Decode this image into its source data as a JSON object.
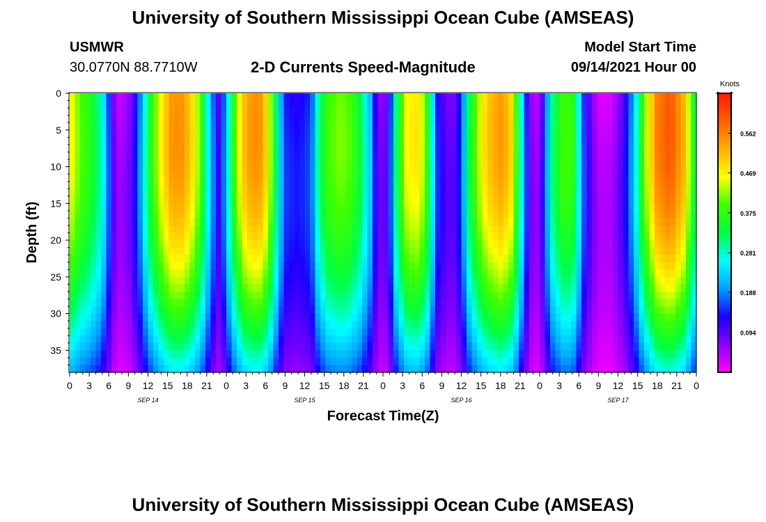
{
  "header": {
    "title": "University of Southern Mississippi Ocean Cube (AMSEAS)",
    "footer_title": "University of Southern Mississippi Ocean Cube (AMSEAS)",
    "station": "USMWR",
    "coords": "30.0770N  88.7710W",
    "model_start_label": "Model Start Time",
    "model_start_value": "09/14/2021 Hour 00"
  },
  "chart_data": {
    "type": "heatmap",
    "title": "2-D Currents Speed-Magnitude",
    "xlabel": "Forecast Time(Z)",
    "ylabel": "Depth (ft)",
    "colorbar_label": "Knots",
    "x_range_hours": [
      0,
      96
    ],
    "y_range_ft": [
      0,
      38
    ],
    "x_ticks": [
      "0",
      "3",
      "6",
      "9",
      "12",
      "15",
      "18",
      "21",
      "0",
      "3",
      "6",
      "9",
      "12",
      "15",
      "18",
      "21",
      "0",
      "3",
      "6",
      "9",
      "12",
      "15",
      "18",
      "21",
      "0",
      "3",
      "6",
      "9",
      "12",
      "15",
      "18",
      "21",
      "0"
    ],
    "y_ticks": [
      "0",
      "5",
      "10",
      "15",
      "20",
      "25",
      "30",
      "35"
    ],
    "y_tick_values": [
      0,
      5,
      10,
      15,
      20,
      25,
      30,
      35
    ],
    "day_labels": [
      {
        "label": "SEP 14",
        "hour": 12
      },
      {
        "label": "SEP 15",
        "hour": 36
      },
      {
        "label": "SEP 16",
        "hour": 60
      },
      {
        "label": "SEP 17",
        "hour": 84
      }
    ],
    "colorbar_ticks": [
      "0.562",
      "0.469",
      "0.375",
      "0.281",
      "0.188",
      "0.094"
    ],
    "colorbar_tick_values": [
      0.562,
      0.469,
      0.375,
      0.281,
      0.188,
      0.094
    ],
    "value_range": [
      0.0,
      0.656
    ],
    "colors": {
      "scale": [
        "#ff00ff",
        "#8a00ff",
        "#1a00ff",
        "#00a0ff",
        "#00ffff",
        "#00ff40",
        "#40ff00",
        "#ffff00",
        "#ffb000",
        "#ff6000",
        "#ff1a00"
      ]
    },
    "surface_speed_by_hour": [
      [
        0,
        0.47
      ],
      [
        1.5,
        0.4
      ],
      [
        3,
        0.36
      ],
      [
        4.5,
        0.3
      ],
      [
        5.5,
        0.22
      ],
      [
        6.5,
        0.09
      ],
      [
        7.5,
        0.03
      ],
      [
        9,
        0.05
      ],
      [
        10.5,
        0.15
      ],
      [
        11.5,
        0.26
      ],
      [
        12.5,
        0.36
      ],
      [
        14,
        0.46
      ],
      [
        15.5,
        0.54
      ],
      [
        17,
        0.55
      ],
      [
        18.5,
        0.5
      ],
      [
        20,
        0.4
      ],
      [
        21,
        0.28
      ],
      [
        22,
        0.17
      ],
      [
        23,
        0.08
      ],
      [
        24,
        0.22
      ],
      [
        25,
        0.35
      ],
      [
        26.5,
        0.5
      ],
      [
        28,
        0.55
      ],
      [
        29.5,
        0.54
      ],
      [
        31,
        0.4
      ],
      [
        32,
        0.25
      ],
      [
        33,
        0.14
      ],
      [
        35,
        0.12
      ],
      [
        37,
        0.15
      ],
      [
        38,
        0.28
      ],
      [
        39.5,
        0.38
      ],
      [
        41.5,
        0.41
      ],
      [
        43,
        0.39
      ],
      [
        44.5,
        0.33
      ],
      [
        46,
        0.22
      ],
      [
        47,
        0.1
      ],
      [
        48,
        0.04
      ],
      [
        49,
        0.12
      ],
      [
        50,
        0.3
      ],
      [
        51.5,
        0.45
      ],
      [
        53,
        0.48
      ],
      [
        54.5,
        0.42
      ],
      [
        55.5,
        0.26
      ],
      [
        56.5,
        0.12
      ],
      [
        58.5,
        0.06
      ],
      [
        60,
        0.14
      ],
      [
        61,
        0.3
      ],
      [
        62.5,
        0.42
      ],
      [
        64,
        0.5
      ],
      [
        66,
        0.54
      ],
      [
        67.5,
        0.5
      ],
      [
        68.5,
        0.38
      ],
      [
        69.5,
        0.22
      ],
      [
        70.5,
        0.06
      ],
      [
        72,
        0.03
      ],
      [
        73,
        0.18
      ],
      [
        74,
        0.3
      ],
      [
        75.5,
        0.38
      ],
      [
        77,
        0.38
      ],
      [
        78,
        0.26
      ],
      [
        79,
        0.12
      ],
      [
        81,
        0.02
      ],
      [
        83,
        0.02
      ],
      [
        85,
        0.1
      ],
      [
        86.5,
        0.22
      ],
      [
        88,
        0.4
      ],
      [
        90,
        0.56
      ],
      [
        92,
        0.6
      ],
      [
        94,
        0.52
      ],
      [
        95,
        0.42
      ],
      [
        96,
        0.3
      ]
    ]
  }
}
